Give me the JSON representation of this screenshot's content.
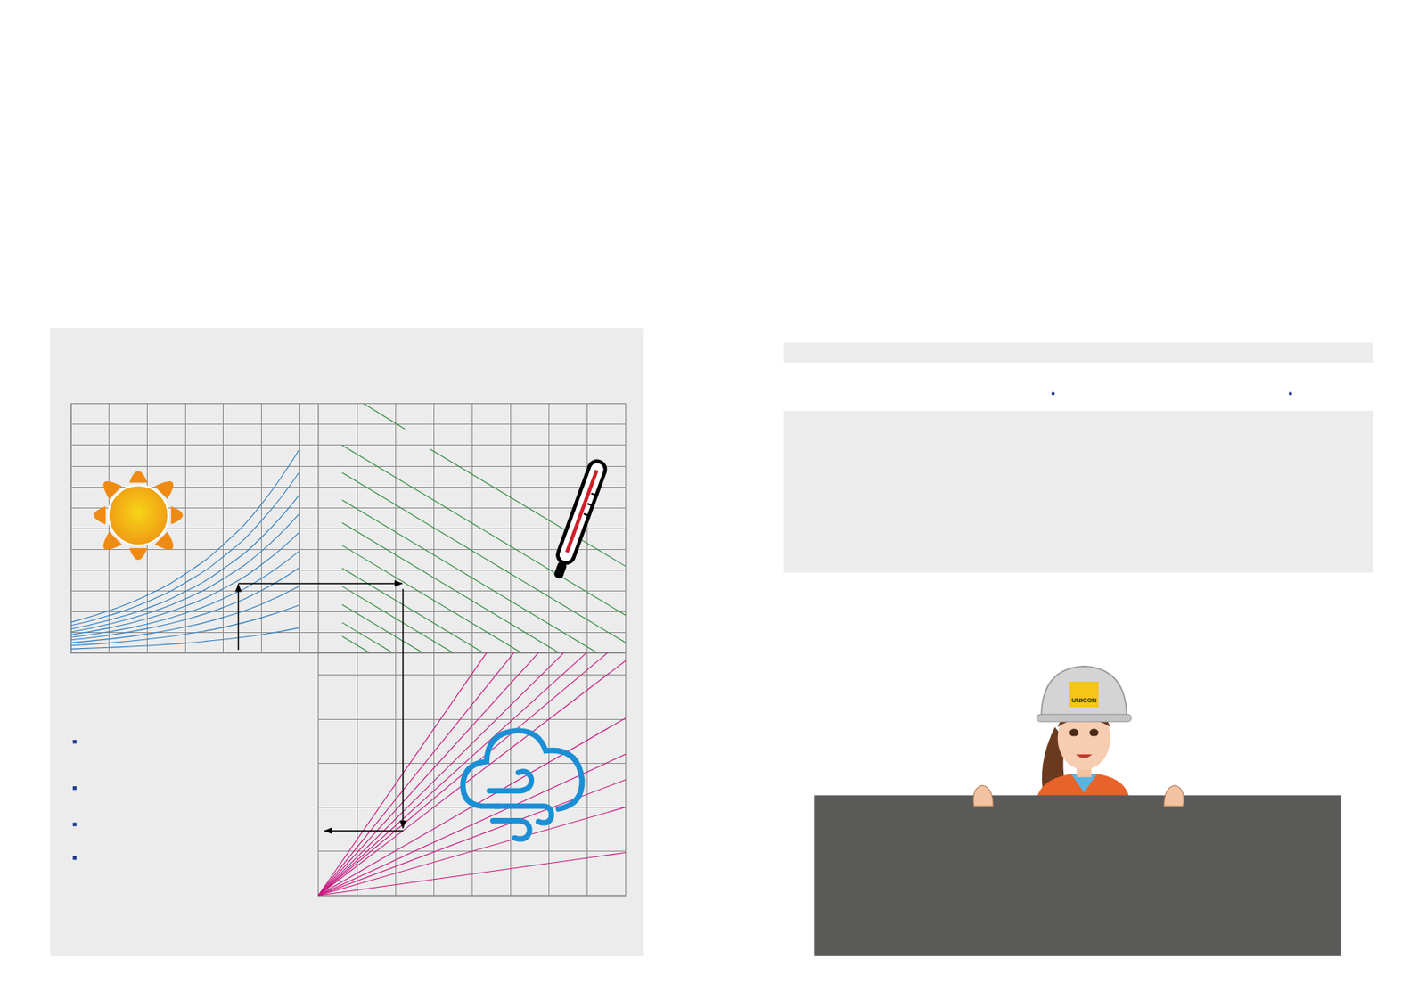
{
  "chart_data": [
    {
      "type": "line",
      "grid": true,
      "tick_labels": false,
      "color": "#2f7fc1",
      "xlim": [
        0,
        6.5
      ],
      "ylim": [
        0,
        12
      ],
      "xticks": [
        0,
        1,
        2,
        3,
        4,
        5,
        6
      ],
      "yticks": [
        0,
        1,
        2,
        3,
        4,
        5,
        6,
        7,
        8,
        9,
        10,
        11,
        12
      ],
      "series": [
        {
          "x": [
            0,
            1,
            2,
            3,
            4,
            5,
            6
          ],
          "values": [
            1.47,
            2.02,
            2.76,
            3.79,
            5.2,
            7.14,
            9.8
          ]
        },
        {
          "x": [
            0,
            1,
            2,
            3,
            4,
            5,
            6
          ],
          "values": [
            1.31,
            1.79,
            2.45,
            3.37,
            4.62,
            6.34,
            8.7
          ]
        },
        {
          "x": [
            0,
            1,
            2,
            3,
            4,
            5,
            6
          ],
          "values": [
            1.14,
            1.57,
            2.14,
            2.94,
            4.04,
            5.54,
            7.6
          ]
        },
        {
          "x": [
            0,
            1,
            2,
            3,
            4,
            5,
            6
          ],
          "values": [
            1.0,
            1.38,
            1.89,
            2.59,
            3.56,
            4.88,
            6.7
          ]
        },
        {
          "x": [
            0,
            1,
            2,
            3,
            4,
            5,
            6
          ],
          "values": [
            0.87,
            1.19,
            1.64,
            2.24,
            3.08,
            4.23,
            5.8
          ]
        },
        {
          "x": [
            0,
            1,
            2,
            3,
            4,
            5,
            6
          ],
          "values": [
            0.74,
            1.01,
            1.38,
            1.9,
            2.6,
            3.57,
            4.9
          ]
        },
        {
          "x": [
            0,
            1,
            2,
            3,
            4,
            5,
            6
          ],
          "values": [
            0.62,
            0.84,
            1.16,
            1.59,
            2.18,
            2.99,
            4.1
          ]
        },
        {
          "x": [
            0,
            1,
            2,
            3,
            4,
            5,
            6
          ],
          "values": [
            0.48,
            0.66,
            0.9,
            1.24,
            1.7,
            2.33,
            3.2
          ]
        },
        {
          "x": [
            0,
            1,
            2,
            3,
            4,
            5,
            6
          ],
          "values": [
            0.35,
            0.47,
            0.65,
            0.89,
            1.22,
            1.68,
            2.3
          ]
        },
        {
          "x": [
            0,
            1,
            2,
            3,
            4,
            5,
            6
          ],
          "values": [
            0.18,
            0.25,
            0.34,
            0.46,
            0.64,
            0.87,
            1.2
          ]
        }
      ]
    },
    {
      "type": "line",
      "grid": true,
      "tick_labels": false,
      "color": "#2e8b3e",
      "xlim": [
        0,
        8
      ],
      "ylim": [
        0,
        12
      ],
      "xticks": [
        0,
        1,
        2,
        3,
        4,
        5,
        6,
        7,
        8
      ],
      "yticks": [
        0,
        1,
        2,
        3,
        4,
        5,
        6,
        7,
        8,
        9,
        10,
        11,
        12
      ],
      "series": [
        {
          "x": [
            1.18,
            2.25
          ],
          "values": [
            12.0,
            10.78
          ]
        },
        {
          "x": [
            2.91,
            8
          ],
          "values": [
            9.81,
            4.16
          ]
        },
        {
          "x": [
            0.62,
            8
          ],
          "values": [
            9.99,
            1.8
          ]
        },
        {
          "x": [
            0.62,
            8
          ],
          "values": [
            8.67,
            0.48
          ]
        },
        {
          "x": [
            0.62,
            7.25
          ],
          "values": [
            7.36,
            0
          ]
        },
        {
          "x": [
            0.62,
            6.26
          ],
          "values": [
            6.26,
            0
          ]
        },
        {
          "x": [
            0.62,
            5.28
          ],
          "values": [
            5.17,
            0
          ]
        },
        {
          "x": [
            0.62,
            4.29
          ],
          "values": [
            4.07,
            0
          ]
        },
        {
          "x": [
            0.62,
            3.5
          ],
          "values": [
            3.2,
            0
          ]
        },
        {
          "x": [
            0.62,
            2.71
          ],
          "values": [
            2.32,
            0
          ]
        },
        {
          "x": [
            0.62,
            1.93
          ],
          "values": [
            1.45,
            0
          ]
        },
        {
          "x": [
            0.62,
            1.33
          ],
          "values": [
            0.79,
            0
          ]
        }
      ]
    },
    {
      "type": "line",
      "grid": true,
      "tick_labels": false,
      "color": "#c8187f",
      "xlim": [
        0,
        8
      ],
      "ylim": [
        0,
        5.5
      ],
      "xticks": [
        0,
        1,
        2,
        3,
        4,
        5,
        6,
        7,
        8
      ],
      "yticks": [
        0,
        1,
        2,
        3,
        4,
        5
      ],
      "series": [
        {
          "x": [
            0,
            4.38
          ],
          "values": [
            0,
            5.5
          ]
        },
        {
          "x": [
            0,
            5.09
          ],
          "values": [
            0,
            5.5
          ]
        },
        {
          "x": [
            0,
            5.73
          ],
          "values": [
            0,
            5.5
          ]
        },
        {
          "x": [
            0,
            6.39
          ],
          "values": [
            0,
            5.5
          ]
        },
        {
          "x": [
            0,
            6.98
          ],
          "values": [
            0,
            5.5
          ]
        },
        {
          "x": [
            0,
            7.53
          ],
          "values": [
            0,
            5.5
          ]
        },
        {
          "x": [
            0,
            8
          ],
          "values": [
            0,
            5.32
          ]
        },
        {
          "x": [
            0,
            8
          ],
          "values": [
            0,
            4.02
          ]
        },
        {
          "x": [
            0,
            8
          ],
          "values": [
            0,
            3.2
          ]
        },
        {
          "x": [
            0,
            8
          ],
          "values": [
            0,
            2.62
          ]
        },
        {
          "x": [
            0,
            8
          ],
          "values": [
            0,
            2.0
          ]
        },
        {
          "x": [
            0,
            8
          ],
          "values": [
            0,
            0.97
          ]
        }
      ]
    }
  ],
  "illustration": {
    "helmet_label": "UNICON"
  }
}
